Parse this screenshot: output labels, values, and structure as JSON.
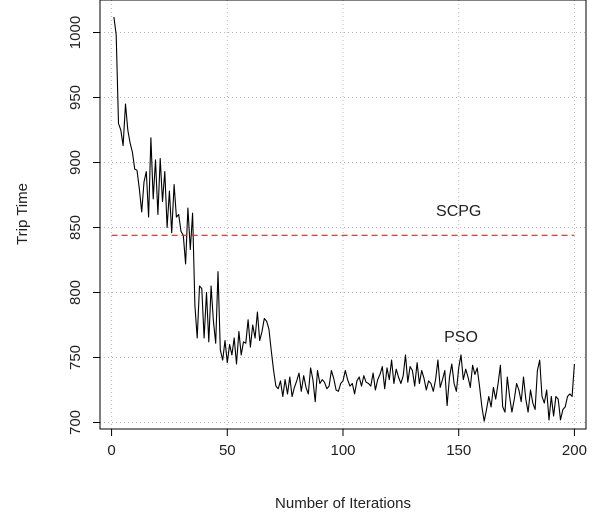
{
  "chart_data": {
    "type": "line",
    "title": "",
    "xlabel": "Number of Iterations",
    "ylabel": "Trip Time",
    "xlim": [
      -5,
      205
    ],
    "ylim": [
      695,
      1025
    ],
    "xticks": [
      0,
      50,
      100,
      150,
      200
    ],
    "yticks": [
      700,
      750,
      800,
      850,
      900,
      950,
      1000
    ],
    "grid": true,
    "legend": "none",
    "annotations": [
      {
        "text": "SCPG",
        "x": 150,
        "y": 859
      },
      {
        "text": "PSO",
        "x": 151,
        "y": 762
      }
    ],
    "series": [
      {
        "color": "#000000",
        "style": "solid",
        "x": [
          1,
          2,
          3,
          4,
          5,
          6,
          7,
          8,
          9,
          10,
          11,
          12,
          13,
          14,
          15,
          16,
          17,
          18,
          19,
          20,
          21,
          22,
          23,
          24,
          25,
          26,
          27,
          28,
          29,
          30,
          31,
          32,
          33,
          34,
          35,
          36,
          37,
          38,
          39,
          40,
          41,
          42,
          43,
          44,
          45,
          46,
          47,
          48,
          49,
          50,
          51,
          52,
          53,
          54,
          55,
          56,
          57,
          58,
          59,
          60,
          61,
          62,
          63,
          64,
          65,
          66,
          67,
          68,
          69,
          70,
          71,
          72,
          73,
          74,
          75,
          76,
          77,
          78,
          79,
          80,
          81,
          82,
          83,
          84,
          85,
          86,
          87,
          88,
          89,
          90,
          91,
          92,
          93,
          94,
          95,
          96,
          97,
          98,
          99,
          100,
          101,
          102,
          103,
          104,
          105,
          106,
          107,
          108,
          109,
          110,
          111,
          112,
          113,
          114,
          115,
          116,
          117,
          118,
          119,
          120,
          121,
          122,
          123,
          124,
          125,
          126,
          127,
          128,
          129,
          130,
          131,
          132,
          133,
          134,
          135,
          136,
          137,
          138,
          139,
          140,
          141,
          142,
          143,
          144,
          145,
          146,
          147,
          148,
          149,
          150,
          151,
          152,
          153,
          154,
          155,
          156,
          157,
          158,
          159,
          160,
          161,
          162,
          163,
          164,
          165,
          166,
          167,
          168,
          169,
          170,
          171,
          172,
          173,
          174,
          175,
          176,
          177,
          178,
          179,
          180,
          181,
          182,
          183,
          184,
          185,
          186,
          187,
          188,
          189,
          190,
          191,
          192,
          193,
          194,
          195,
          196,
          197,
          198,
          199,
          200
        ],
        "y": [
          1012,
          998,
          930,
          925,
          913,
          945,
          925,
          915,
          908,
          895,
          894,
          880,
          862,
          885,
          893,
          858,
          919,
          872,
          902,
          860,
          903,
          870,
          893,
          850,
          878,
          846,
          883,
          858,
          860,
          847,
          844,
          822,
          865,
          833,
          861,
          790,
          765,
          805,
          803,
          765,
          800,
          762,
          805,
          778,
          761,
          816,
          756,
          748,
          763,
          746,
          760,
          752,
          765,
          745,
          770,
          752,
          762,
          761,
          779,
          758,
          775,
          765,
          785,
          763,
          770,
          780,
          778,
          772,
          755,
          740,
          728,
          726,
          732,
          720,
          733,
          722,
          735,
          720,
          727,
          732,
          738,
          724,
          736,
          727,
          722,
          742,
          733,
          716,
          740,
          730,
          733,
          731,
          726,
          728,
          740,
          734,
          725,
          724,
          730,
          732,
          740,
          733,
          728,
          730,
          722,
          732,
          735,
          728,
          736,
          731,
          730,
          728,
          738,
          725,
          733,
          737,
          743,
          726,
          742,
          733,
          748,
          730,
          741,
          735,
          730,
          736,
          752,
          731,
          743,
          740,
          728,
          746,
          730,
          740,
          734,
          725,
          732,
          730,
          724,
          733,
          748,
          727,
          733,
          740,
          713,
          735,
          745,
          730,
          724,
          742,
          752,
          733,
          741,
          735,
          727,
          744,
          737,
          742,
          728,
          712,
          701,
          710,
          720,
          712,
          727,
          718,
          730,
          744,
          712,
          708,
          735,
          720,
          708,
          718,
          730,
          725,
          716,
          735,
          718,
          708,
          725,
          715,
          710,
          740,
          748,
          720,
          715,
          725,
          702,
          720,
          705,
          720,
          718,
          702,
          710,
          712,
          720,
          722,
          720,
          745
        ]
      },
      {
        "color": "#d62728",
        "style": "dashed",
        "x": [
          0,
          200
        ],
        "y": [
          844,
          844
        ]
      }
    ]
  }
}
